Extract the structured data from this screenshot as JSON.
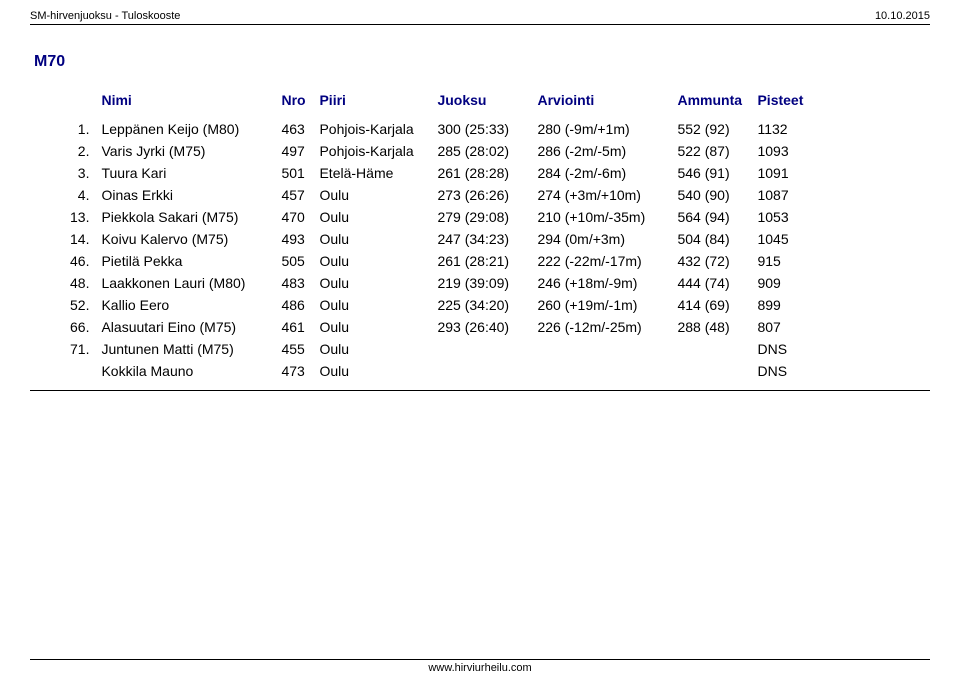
{
  "header": {
    "left": "SM-hirvenjuoksu - Tuloskooste",
    "right": "10.10.2015"
  },
  "category": "M70",
  "columns": {
    "rank": "",
    "name": "Nimi",
    "nro": "Nro",
    "piiri": "Piiri",
    "juoksu": "Juoksu",
    "arviointi": "Arviointi",
    "ammunta": "Ammunta",
    "pisteet": "Pisteet"
  },
  "rows": [
    {
      "rank": "1.",
      "name": "Leppänen Keijo (M80)",
      "nro": "463",
      "piiri": "Pohjois-Karjala",
      "juoksu": "300 (25:33)",
      "arv": "280 (-9m/+1m)",
      "amm": "552 (92)",
      "pist": "1132"
    },
    {
      "rank": "2.",
      "name": "Varis Jyrki (M75)",
      "nro": "497",
      "piiri": "Pohjois-Karjala",
      "juoksu": "285 (28:02)",
      "arv": "286 (-2m/-5m)",
      "amm": "522 (87)",
      "pist": "1093"
    },
    {
      "rank": "3.",
      "name": "Tuura Kari",
      "nro": "501",
      "piiri": "Etelä-Häme",
      "juoksu": "261 (28:28)",
      "arv": "284 (-2m/-6m)",
      "amm": "546 (91)",
      "pist": "1091"
    },
    {
      "rank": "4.",
      "name": "Oinas Erkki",
      "nro": "457",
      "piiri": "Oulu",
      "juoksu": "273 (26:26)",
      "arv": "274 (+3m/+10m)",
      "amm": "540 (90)",
      "pist": "1087"
    },
    {
      "rank": "13.",
      "name": "Piekkola Sakari (M75)",
      "nro": "470",
      "piiri": "Oulu",
      "juoksu": "279 (29:08)",
      "arv": "210 (+10m/-35m)",
      "amm": "564 (94)",
      "pist": "1053"
    },
    {
      "rank": "14.",
      "name": "Koivu Kalervo (M75)",
      "nro": "493",
      "piiri": "Oulu",
      "juoksu": "247 (34:23)",
      "arv": "294 (0m/+3m)",
      "amm": "504 (84)",
      "pist": "1045"
    },
    {
      "rank": "46.",
      "name": "Pietilä Pekka",
      "nro": "505",
      "piiri": "Oulu",
      "juoksu": "261 (28:21)",
      "arv": "222 (-22m/-17m)",
      "amm": "432 (72)",
      "pist": "915"
    },
    {
      "rank": "48.",
      "name": "Laakkonen Lauri (M80)",
      "nro": "483",
      "piiri": "Oulu",
      "juoksu": "219 (39:09)",
      "arv": "246 (+18m/-9m)",
      "amm": "444 (74)",
      "pist": "909"
    },
    {
      "rank": "52.",
      "name": "Kallio Eero",
      "nro": "486",
      "piiri": "Oulu",
      "juoksu": "225 (34:20)",
      "arv": "260 (+19m/-1m)",
      "amm": "414 (69)",
      "pist": "899"
    },
    {
      "rank": "66.",
      "name": "Alasuutari Eino (M75)",
      "nro": "461",
      "piiri": "Oulu",
      "juoksu": "293 (26:40)",
      "arv": "226 (-12m/-25m)",
      "amm": "288 (48)",
      "pist": "807"
    },
    {
      "rank": "71.",
      "name": "Juntunen Matti (M75)",
      "nro": "455",
      "piiri": "Oulu",
      "juoksu": "",
      "arv": "",
      "amm": "",
      "pist": "DNS"
    },
    {
      "rank": "",
      "name": "Kokkila Mauno",
      "nro": "473",
      "piiri": "Oulu",
      "juoksu": "",
      "arv": "",
      "amm": "",
      "pist": "DNS"
    }
  ],
  "footer": "www.hirviurheilu.com"
}
